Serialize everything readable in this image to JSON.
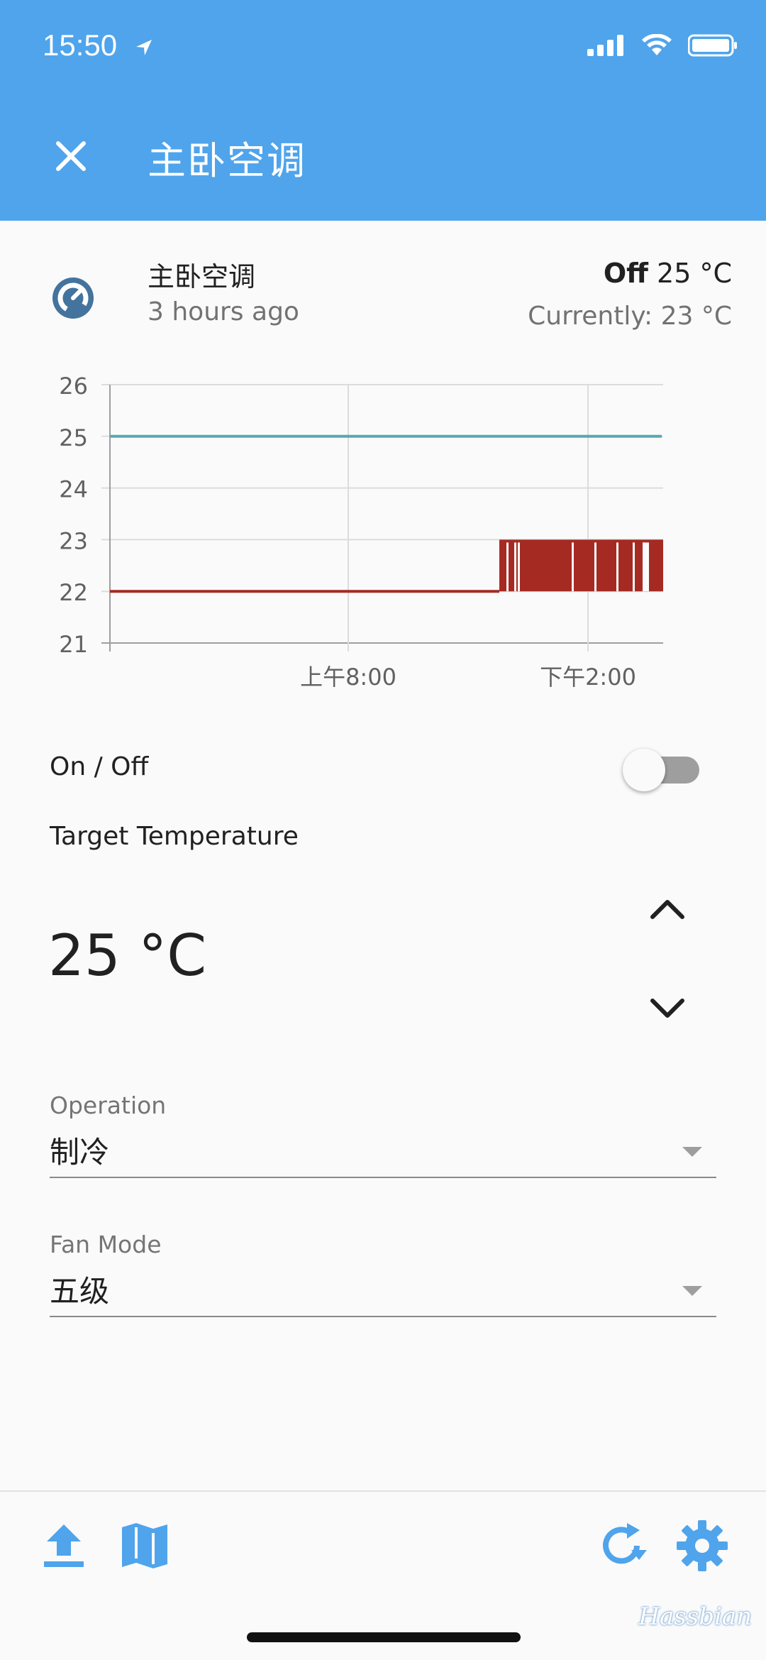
{
  "status_bar": {
    "time": "15:50"
  },
  "app_bar": {
    "title": "主卧空调"
  },
  "entity": {
    "name": "主卧空调",
    "last_changed": "3 hours ago",
    "state_bold": "Off",
    "state_temp": "25 °C",
    "current": "Currently: 23 °C"
  },
  "chart_data": {
    "type": "line",
    "y_ticks": [
      "26",
      "25",
      "24",
      "23",
      "22",
      "21"
    ],
    "x_ticks": [
      "上午8:00",
      "下午2:00"
    ],
    "ylim": [
      21,
      26
    ],
    "series": [
      {
        "color": "#5aa7b0",
        "values": [
          25,
          25
        ]
      },
      {
        "color": "#a52a22",
        "values": [
          22,
          22,
          23,
          22,
          23,
          22,
          23,
          22,
          23,
          22,
          23,
          22,
          23,
          22
        ]
      }
    ]
  },
  "controls": {
    "on_off_label": "On / Off",
    "target_label": "Target Temperature",
    "target_value": "25 °C",
    "operation_label": "Operation",
    "operation_value": "制冷",
    "fan_label": "Fan Mode",
    "fan_value": "五级"
  },
  "colors": {
    "primary": "#4fa4ec",
    "accent": "#4fa4ec"
  },
  "watermark": "Hassbian"
}
